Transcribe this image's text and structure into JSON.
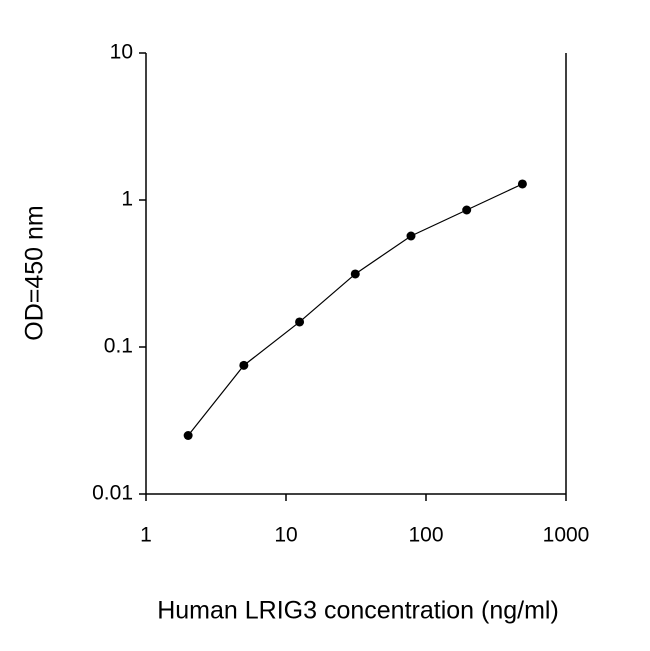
{
  "chart_data": {
    "type": "line",
    "xlabel": "Human LRIG3 concentration (ng/ml)",
    "ylabel": "OD=450 nm",
    "x": [
      2,
      5,
      12.5,
      31.25,
      78.125,
      195.3,
      488.3
    ],
    "series": [
      {
        "color": "#000000",
        "values": [
          0.025,
          0.075,
          0.148,
          0.314,
          0.569,
          0.855,
          1.285
        ]
      }
    ],
    "xlim": [
      1,
      1000
    ],
    "xticks": [
      1,
      10,
      100,
      1000
    ],
    "xscale": "log",
    "ylim": [
      0.01,
      10
    ],
    "yticks": [
      0.01,
      0.1,
      1,
      10
    ],
    "yscale": "log",
    "markers": true
  }
}
